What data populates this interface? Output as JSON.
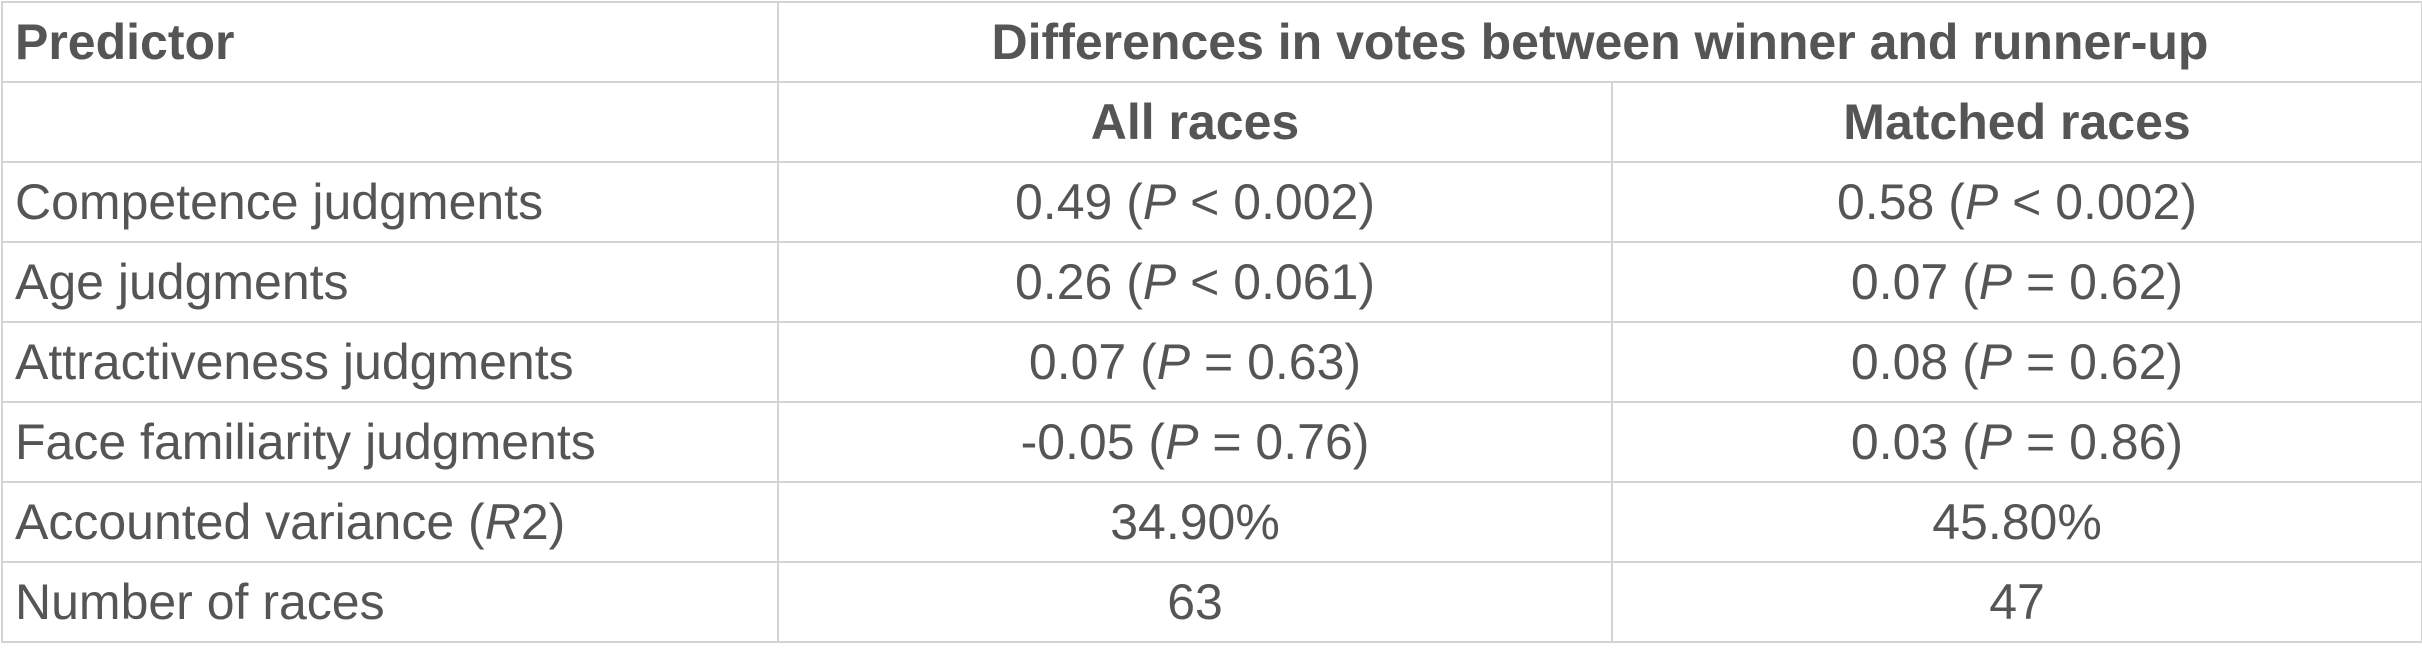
{
  "table": {
    "header": {
      "predictor": "Predictor",
      "group": "Differences in votes between winner and runner-up",
      "columns": [
        "All races",
        "Matched races"
      ]
    },
    "rows": [
      [
        "Competence judgments",
        [
          "0.49 (",
          "P",
          " < 0.002)"
        ],
        [
          "0.58 (",
          "P",
          " < 0.002)"
        ]
      ],
      [
        "Age judgments",
        [
          "0.26 (",
          "P",
          " < 0.061)"
        ],
        [
          "0.07 (",
          "P",
          " = 0.62)"
        ]
      ],
      [
        "Attractiveness judgments",
        [
          "0.07 (",
          "P",
          " = 0.63)"
        ],
        [
          "0.08 (",
          "P",
          " = 0.62)"
        ]
      ],
      [
        "Face familiarity judgments",
        [
          "-0.05 (",
          "P",
          " = 0.76)"
        ],
        [
          "0.03 (",
          "P",
          " = 0.86)"
        ]
      ],
      [
        [
          "Accounted variance (",
          "R",
          "2)"
        ],
        "34.90%",
        "45.80%"
      ],
      [
        "Number of races",
        "63",
        "47"
      ]
    ]
  }
}
